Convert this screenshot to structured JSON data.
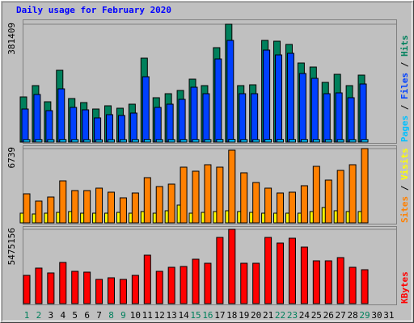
{
  "chart_data": [
    {
      "type": "bar",
      "title": "Daily usage for February 2020",
      "ylim": [
        0,
        381409
      ],
      "yticks": [
        381409
      ],
      "legend_separator": " / ",
      "series": [
        {
          "name": "Pages",
          "color": "#00c0ff",
          "values": [
            8000,
            8200,
            7900,
            8300,
            8100,
            7800,
            7700,
            7900,
            8000,
            8100,
            8400,
            8000,
            8100,
            8200,
            8300,
            8100,
            8500,
            8700,
            8100,
            8000,
            8600,
            8500,
            8400,
            8300,
            8200,
            8000,
            8100,
            8000,
            8200,
            null,
            null
          ]
        },
        {
          "name": "Files",
          "color": "#0040ff",
          "values": [
            107092,
            154108,
            101868,
            172392,
            112316,
            104480,
            78360,
            88808,
            86196,
            94032,
            211572,
            112316,
            122764,
            138436,
            177616,
            156720,
            269036,
            329112,
            156720,
            156720,
            297768,
            282096,
            287320,
            222020,
            206348,
            156720,
            159332,
            143660,
            188064,
            null,
            null
          ]
        },
        {
          "name": "Hits",
          "color": "#00805c",
          "values": [
            146272,
            182840,
            130600,
            232468,
            141048,
            127988,
            107092,
            117540,
            109704,
            122764,
            271648,
            143660,
            156720,
            167168,
            203736,
            182840,
            305604,
            381409,
            182840,
            185452,
            329112,
            326500,
            316052,
            255976,
            242916,
            193288,
            219408,
            182840,
            216796,
            null,
            null
          ]
        }
      ]
    },
    {
      "type": "bar",
      "ylim": [
        0,
        6739
      ],
      "yticks": [
        6739
      ],
      "legend_separator": " / ",
      "series": [
        {
          "name": "Sites",
          "color": "#ff8000",
          "values": [
            2637,
            1978,
            2344,
            3809,
            2930,
            2930,
            3150,
            2784,
            2271,
            2710,
            4102,
            3296,
            3516,
            5054,
            4688,
            5274,
            5054,
            6593,
            4542,
            3663,
            3150,
            2710,
            2784,
            3370,
            5128,
            3882,
            4761,
            5274,
            6739,
            null,
            null
          ]
        },
        {
          "name": "Visits",
          "color": "#ffff00",
          "values": [
            879,
            806,
            879,
            952,
            1026,
            879,
            879,
            879,
            952,
            879,
            1026,
            879,
            1099,
            1612,
            879,
            952,
            1026,
            1099,
            1026,
            952,
            879,
            879,
            879,
            879,
            1026,
            1392,
            1099,
            1026,
            1026,
            null,
            null
          ]
        }
      ]
    },
    {
      "type": "bar",
      "ylim": [
        0,
        5475156
      ],
      "yticks": [
        5475156
      ],
      "series": [
        {
          "name": "KBytes",
          "color": "#ff0000",
          "values": [
            2082955,
            2618572,
            2261494,
            3035163,
            2380520,
            2321007,
            1785390,
            1904416,
            1785390,
            2082955,
            3570780,
            2380520,
            2678085,
            2737598,
            3273215,
            2975650,
            4880066,
            5475156,
            2975650,
            2975650,
            4880066,
            4463475,
            4820553,
            4165910,
            3154189,
            3154189,
            3392241,
            2678085,
            2499546,
            null,
            null
          ]
        }
      ],
      "categories": [
        "1",
        "2",
        "3",
        "4",
        "5",
        "6",
        "7",
        "8",
        "9",
        "10",
        "11",
        "12",
        "13",
        "14",
        "15",
        "16",
        "17",
        "18",
        "19",
        "20",
        "21",
        "22",
        "23",
        "24",
        "25",
        "26",
        "27",
        "28",
        "29",
        "30",
        "31"
      ],
      "category_colors": [
        "#00805c",
        "#00805c",
        "#000000",
        "#000000",
        "#000000",
        "#000000",
        "#000000",
        "#00805c",
        "#00805c",
        "#000000",
        "#000000",
        "#000000",
        "#000000",
        "#000000",
        "#00805c",
        "#00805c",
        "#000000",
        "#000000",
        "#000000",
        "#000000",
        "#000000",
        "#00805c",
        "#00805c",
        "#000000",
        "#000000",
        "#000000",
        "#000000",
        "#000000",
        "#00805c",
        "#000000",
        "#000000"
      ]
    }
  ]
}
